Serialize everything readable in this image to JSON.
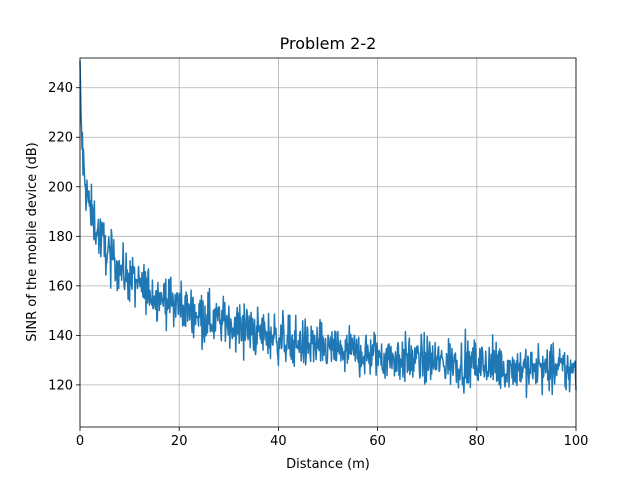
{
  "chart_data": {
    "type": "line",
    "title": "Problem 2-2",
    "xlabel": "Distance (m)",
    "ylabel": "SINR of the mobile device (dB)",
    "xlim": [
      0,
      100
    ],
    "ylim": [
      103,
      252
    ],
    "xticks": [
      0,
      20,
      40,
      60,
      80,
      100
    ],
    "yticks": [
      120,
      140,
      160,
      180,
      200,
      220,
      240
    ],
    "grid": true,
    "series": [
      {
        "color": "#1f77b4",
        "x": [
          0,
          0.25,
          0.5,
          0.75,
          1,
          1.5,
          2,
          3,
          4,
          5,
          6,
          7,
          8,
          9,
          10,
          12,
          14,
          16,
          18,
          20,
          22,
          24,
          26,
          28,
          30,
          32,
          34,
          36,
          38,
          40,
          42,
          44,
          46,
          48,
          50,
          52,
          54,
          56,
          58,
          60,
          62,
          64,
          66,
          68,
          70,
          72,
          74,
          76,
          78,
          80,
          82,
          84,
          86,
          88,
          90,
          92,
          94,
          96,
          98,
          100
        ],
        "y": [
          244,
          225,
          215,
          205,
          200,
          196,
          192,
          185,
          180,
          176,
          172,
          170,
          167,
          165,
          163,
          160,
          158,
          156,
          154,
          152,
          150,
          149,
          147,
          146,
          145,
          144,
          142,
          141,
          140,
          139,
          138,
          137,
          136,
          135,
          134,
          134,
          133,
          133,
          132,
          132,
          131,
          131,
          130,
          130,
          130,
          129,
          129,
          129,
          128,
          128,
          128,
          127,
          127,
          127,
          127,
          126,
          126,
          126,
          126,
          125
        ],
        "noise_amplitude": 7
      }
    ]
  }
}
